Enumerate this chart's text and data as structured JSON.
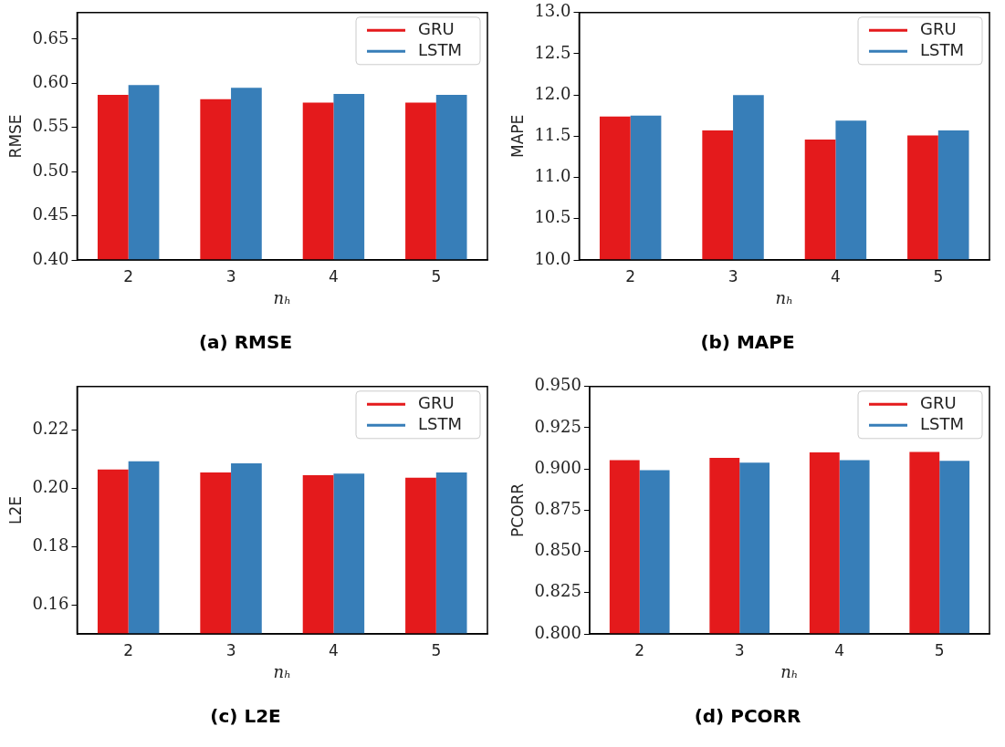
{
  "chart_data": [
    {
      "type": "bar",
      "title": "(a) RMSE",
      "xlabel": "nₕ",
      "ylabel": "RMSE",
      "categories": [
        "2",
        "3",
        "4",
        "5"
      ],
      "grid": false,
      "legend": "top right",
      "ylim": [
        0.4,
        0.68
      ],
      "yticks": [
        {
          "value": 0.4,
          "label": "0.40"
        },
        0.45,
        {
          "value": 0.5,
          "label": "0.50"
        },
        0.55,
        {
          "value": 0.6,
          "label": "0.60"
        },
        0.65
      ],
      "series": [
        {
          "name": "GRU",
          "color": "#e41a1c",
          "values": [
            0.587,
            0.582,
            0.578,
            0.578
          ]
        },
        {
          "name": "LSTM",
          "color": "#377eb8",
          "values": [
            0.598,
            0.595,
            0.588,
            0.587
          ]
        }
      ]
    },
    {
      "type": "bar",
      "title": "(b) MAPE",
      "xlabel": "nₕ",
      "ylabel": "MAPE",
      "categories": [
        "2",
        "3",
        "4",
        "5"
      ],
      "grid": false,
      "legend": "top right",
      "ylim": [
        10,
        13
      ],
      "yticks": [
        {
          "value": 10,
          "label": "10.0"
        },
        10.5,
        {
          "value": 11,
          "label": "11.0"
        },
        11.5,
        {
          "value": 12,
          "label": "12.0"
        },
        12.5,
        {
          "value": 13,
          "label": "13.0"
        }
      ],
      "series": [
        {
          "name": "GRU",
          "color": "#e41a1c",
          "values": [
            11.74,
            11.57,
            11.46,
            11.51
          ]
        },
        {
          "name": "LSTM",
          "color": "#377eb8",
          "values": [
            11.75,
            12.0,
            11.69,
            11.57
          ]
        }
      ]
    },
    {
      "type": "bar",
      "title": "(c) L2E",
      "xlabel": "nₕ",
      "ylabel": "L2E",
      "categories": [
        "2",
        "3",
        "4",
        "5"
      ],
      "grid": false,
      "legend": "top right",
      "ylim": [
        0.15,
        0.235
      ],
      "yticks": [
        0.16,
        0.18,
        {
          "value": 0.2,
          "label": "0.20"
        },
        0.22
      ],
      "series": [
        {
          "name": "GRU",
          "color": "#e41a1c",
          "values": [
            0.2065,
            0.2055,
            0.2045,
            0.2037
          ]
        },
        {
          "name": "LSTM",
          "color": "#377eb8",
          "values": [
            0.2093,
            0.2086,
            0.2051,
            0.2055
          ]
        }
      ]
    },
    {
      "type": "bar",
      "title": "(d) PCORR",
      "xlabel": "nₕ",
      "ylabel": "PCORR",
      "categories": [
        "2",
        "3",
        "4",
        "5"
      ],
      "grid": false,
      "legend": "top right",
      "ylim": [
        0.8,
        0.95
      ],
      "yticks": [
        {
          "value": 0.8,
          "label": "0.800"
        },
        0.825,
        {
          "value": 0.85,
          "label": "0.850"
        },
        0.875,
        {
          "value": 0.9,
          "label": "0.900"
        },
        0.925,
        {
          "value": 0.95,
          "label": "0.950"
        }
      ],
      "series": [
        {
          "name": "GRU",
          "color": "#e41a1c",
          "values": [
            0.9053,
            0.9067,
            0.91,
            0.9104
          ]
        },
        {
          "name": "LSTM",
          "color": "#377eb8",
          "values": [
            0.8993,
            0.9039,
            0.9053,
            0.9049
          ]
        }
      ]
    }
  ]
}
